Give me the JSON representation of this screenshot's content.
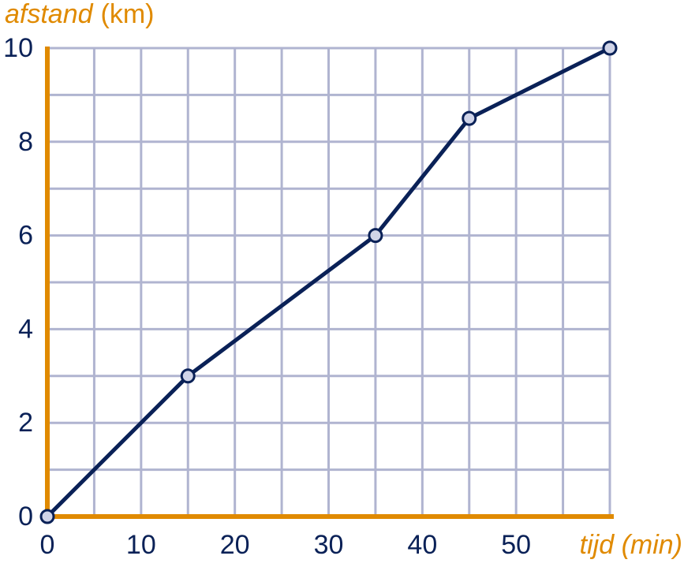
{
  "chart_data": {
    "type": "line",
    "ylabel": {
      "name": "afstand",
      "unit": "(km)"
    },
    "xlabel": "tijd (min)",
    "x": [
      0,
      15,
      35,
      45,
      60
    ],
    "series": [
      {
        "color": "#0a2157",
        "values": [
          0,
          3,
          6,
          8.5,
          10
        ]
      }
    ],
    "xlim": [
      0,
      60
    ],
    "ylim": [
      0,
      10
    ],
    "xticks": [
      0,
      10,
      20,
      30,
      40,
      50
    ],
    "yticks": [
      0,
      2,
      4,
      6,
      8,
      10
    ],
    "xgrid": [
      0,
      5,
      10,
      15,
      20,
      25,
      30,
      35,
      40,
      45,
      50,
      55,
      60
    ],
    "ygrid": [
      0,
      1,
      2,
      3,
      4,
      5,
      6,
      7,
      8,
      9,
      10
    ],
    "grid_color": "#b0b4d0",
    "axis_color": "#e08a00",
    "marker_fill": "#d0d4e8"
  }
}
